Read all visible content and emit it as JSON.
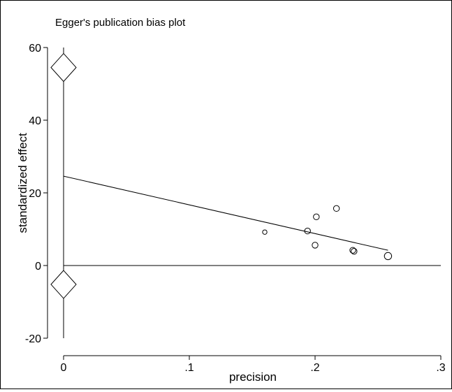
{
  "chart_data": {
    "type": "scatter",
    "title": "Egger's publication bias plot",
    "xlabel": "precision",
    "ylabel": "standardized effect",
    "xlim": [
      0,
      0.3
    ],
    "ylim": [
      -20,
      60
    ],
    "xticks": [
      {
        "value": 0,
        "label": "0"
      },
      {
        "value": 0.1,
        "label": ".1"
      },
      {
        "value": 0.2,
        "label": ".2"
      },
      {
        "value": 0.3,
        "label": ".3"
      }
    ],
    "yticks": [
      {
        "value": -20,
        "label": "-20"
      },
      {
        "value": 0,
        "label": "0"
      },
      {
        "value": 20,
        "label": "20"
      },
      {
        "value": 40,
        "label": "40"
      },
      {
        "value": 60,
        "label": "60"
      }
    ],
    "points": [
      {
        "x": 0.16,
        "y": 9.2,
        "size": "small"
      },
      {
        "x": 0.194,
        "y": 9.5,
        "size": "medium"
      },
      {
        "x": 0.2,
        "y": 5.6,
        "size": "medium"
      },
      {
        "x": 0.201,
        "y": 13.4,
        "size": "medium"
      },
      {
        "x": 0.217,
        "y": 15.7,
        "size": "medium"
      },
      {
        "x": 0.23,
        "y": 4.2,
        "size": "medium"
      },
      {
        "x": 0.231,
        "y": 3.9,
        "size": "medium"
      },
      {
        "x": 0.258,
        "y": 2.6,
        "size": "large"
      }
    ],
    "regression_line": {
      "x": [
        0,
        0.258
      ],
      "y": [
        24.6,
        4.2
      ]
    },
    "reference_line": {
      "y": 0
    },
    "intercept_ci_markers": [
      {
        "x": 0,
        "y": 54.5
      },
      {
        "x": 0,
        "y": -5.2
      }
    ],
    "intercept_ci_line": {
      "x": 0,
      "y": [
        -20,
        60
      ]
    },
    "grid": false,
    "legend": "none"
  }
}
